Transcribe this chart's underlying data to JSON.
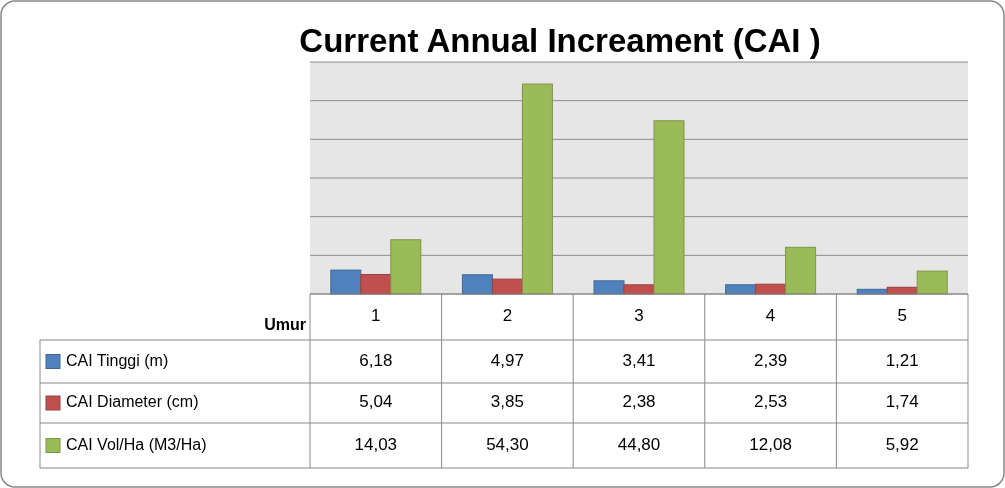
{
  "chart_data": {
    "type": "bar",
    "title": "Current Annual Increament (CAI )",
    "xlabel": "Umur",
    "categories": [
      "1",
      "2",
      "3",
      "4",
      "5"
    ],
    "series": [
      {
        "name": "CAI Tinggi (m)",
        "color": "#4f81bd",
        "values": [
          6.18,
          4.97,
          3.41,
          2.39,
          1.21
        ],
        "value_labels": [
          "6,18",
          "4,97",
          "3,41",
          "2,39",
          "1,21"
        ]
      },
      {
        "name": "CAI Diameter (cm)",
        "color": "#c0504d",
        "values": [
          5.04,
          3.85,
          2.38,
          2.53,
          1.74
        ],
        "value_labels": [
          "5,04",
          "3,85",
          "2,38",
          "2,53",
          "1,74"
        ]
      },
      {
        "name": "CAI Vol/Ha (M3/Ha)",
        "color": "#9bbb59",
        "values": [
          14.03,
          54.3,
          44.8,
          12.08,
          5.92
        ],
        "value_labels": [
          "14,03",
          "54,30",
          "44,80",
          "12,08",
          "5,92"
        ]
      }
    ],
    "ylim": [
      0,
      60
    ],
    "yticks": [
      {
        "value": 0,
        "label": null
      },
      {
        "value": 10,
        "label": null
      },
      {
        "value": 20,
        "label": null
      },
      {
        "value": 30,
        "label": null
      },
      {
        "value": 40,
        "label": null
      },
      {
        "value": 50,
        "label": null
      },
      {
        "value": 60,
        "label": null
      }
    ],
    "grid": "y",
    "legend": "bottom",
    "tick_labels": "x"
  }
}
